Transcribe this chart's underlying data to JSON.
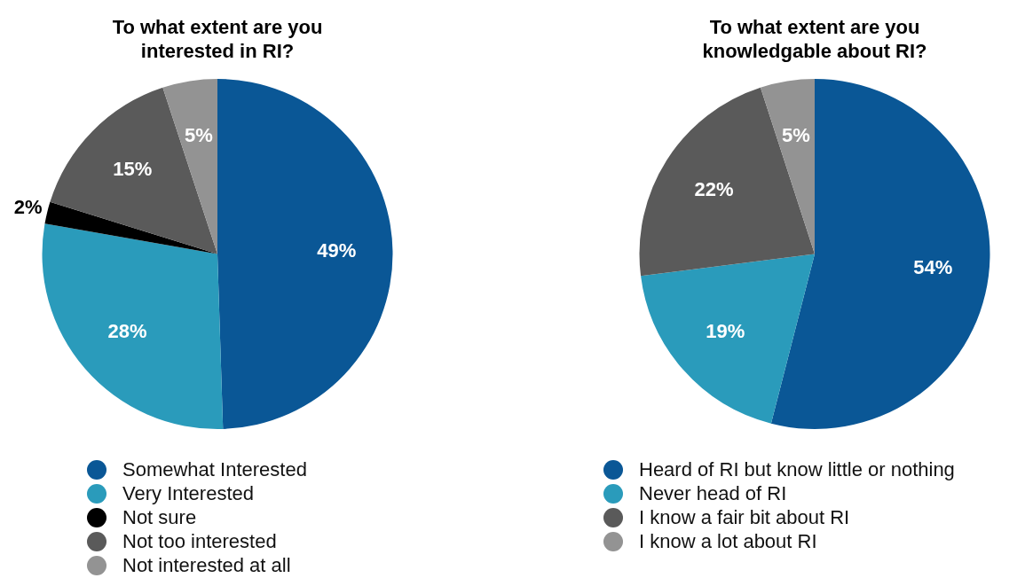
{
  "chart_data": [
    {
      "type": "pie",
      "title": "To what extent are you\ninterested in RI?",
      "categories": [
        "Somewhat Interested",
        "Very Interested",
        "Not sure",
        "Not too interested",
        "Not interested at all"
      ],
      "values": [
        49,
        28,
        2,
        15,
        5
      ],
      "value_labels": [
        "49%",
        "28%",
        "2%",
        "15%",
        "5%"
      ],
      "colors": [
        "#0a5796",
        "#2a9bbb",
        "#000000",
        "#5a5a5a",
        "#939393"
      ],
      "legend": "bottom"
    },
    {
      "type": "pie",
      "title": "To what extent are you\nknowledgable about RI?",
      "categories": [
        "Heard of RI but know little or nothing",
        "Never head of RI",
        "I know a fair bit about RI",
        "I know a lot about RI"
      ],
      "values": [
        54,
        19,
        22,
        5
      ],
      "value_labels": [
        "54%",
        "19%",
        "22%",
        "5%"
      ],
      "colors": [
        "#0a5796",
        "#2a9bbb",
        "#5a5a5a",
        "#939393"
      ],
      "legend": "bottom"
    }
  ]
}
